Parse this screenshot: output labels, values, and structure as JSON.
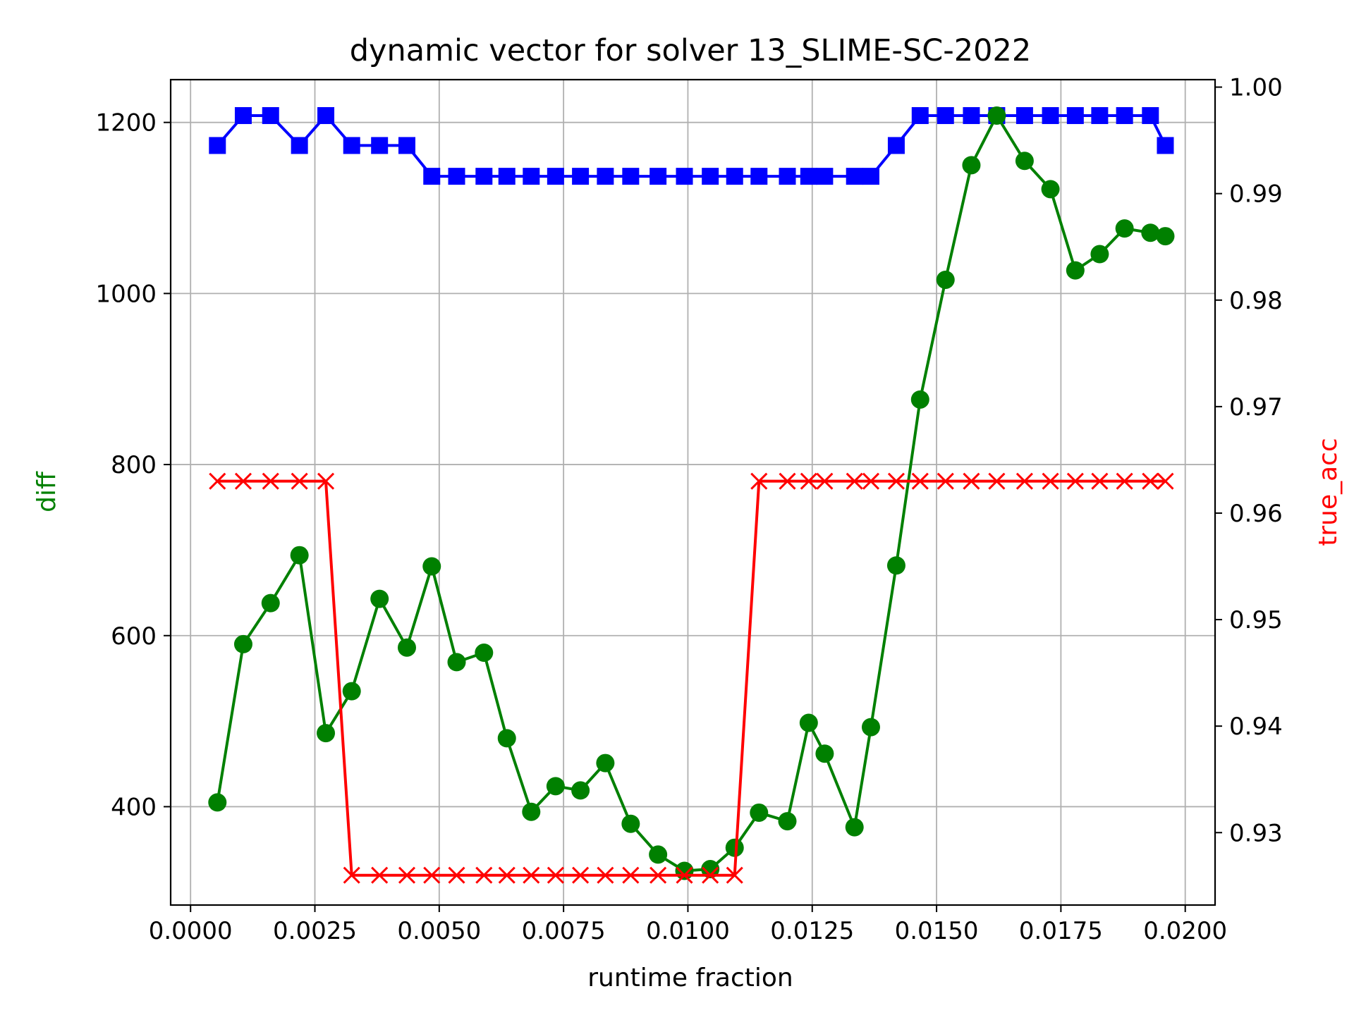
{
  "chart_data": {
    "type": "line",
    "title": "dynamic vector for solver 13_SLIME-SC-2022",
    "xlabel": "runtime fraction",
    "ylabel_left": "diff",
    "ylabel_right": "true_acc",
    "xlim": [
      -0.0004,
      0.0206
    ],
    "ylim_left": [
      285,
      1250
    ],
    "ylim_right": [
      0.9232,
      1.0007
    ],
    "x_ticks": [
      0.0,
      0.0025,
      0.005,
      0.0075,
      0.01,
      0.0125,
      0.015,
      0.0175,
      0.02
    ],
    "x_tick_labels": [
      "0.0000",
      "0.0025",
      "0.0050",
      "0.0075",
      "0.0100",
      "0.0125",
      "0.0150",
      "0.0175",
      "0.0200"
    ],
    "y_left_ticks": [
      400,
      600,
      800,
      1000,
      1200
    ],
    "y_left_tick_labels": [
      "400",
      "600",
      "800",
      "1000",
      "1200"
    ],
    "y_right_ticks": [
      0.93,
      0.94,
      0.95,
      0.96,
      0.97,
      0.98,
      0.99,
      1.0
    ],
    "y_right_tick_labels": [
      "0.93",
      "0.94",
      "0.95",
      "0.96",
      "0.97",
      "0.98",
      "0.99",
      "1.00"
    ],
    "grid": true,
    "colors": {
      "diff": "#008000",
      "blue_series": "#0000ff",
      "true_acc": "#ff0000",
      "ylabel_left": "#008000",
      "ylabel_right": "#ff0000",
      "grid": "#b0b0b0"
    },
    "x": [
      0.00054,
      0.00106,
      0.00161,
      0.00219,
      0.00272,
      0.00324,
      0.0038,
      0.00435,
      0.00485,
      0.00535,
      0.0059,
      0.00636,
      0.00685,
      0.00734,
      0.00784,
      0.00834,
      0.00885,
      0.0094,
      0.00993,
      0.01045,
      0.01094,
      0.01143,
      0.012,
      0.01243,
      0.01275,
      0.01335,
      0.01368,
      0.01419,
      0.01467,
      0.01518,
      0.0157,
      0.01621,
      0.01677,
      0.01729,
      0.01779,
      0.01828,
      0.01878,
      0.0193,
      0.0196
    ],
    "series": [
      {
        "axis": "left",
        "marker": "circle",
        "color": "#008000",
        "values": [
          405,
          590,
          638,
          694,
          486,
          535,
          643,
          586,
          681,
          569,
          580,
          480,
          394,
          424,
          419,
          451,
          380,
          344,
          325,
          327,
          352,
          393,
          383,
          498,
          462,
          376,
          493,
          682,
          876,
          1016,
          1150,
          1208,
          1155,
          1122,
          1027,
          1046,
          1076,
          1071,
          1067
        ]
      },
      {
        "axis": "left",
        "marker": "square",
        "color": "#0000ff",
        "values": [
          1173,
          1208,
          1208,
          1173,
          1208,
          1173,
          1173,
          1173,
          1137,
          1137,
          1137,
          1137,
          1137,
          1137,
          1137,
          1137,
          1137,
          1137,
          1137,
          1137,
          1137,
          1137,
          1137,
          1137,
          1137,
          1137,
          1137,
          1173,
          1208,
          1208,
          1208,
          1208,
          1208,
          1208,
          1208,
          1208,
          1208,
          1208,
          1173
        ]
      },
      {
        "axis": "right",
        "marker": "x",
        "color": "#ff0000",
        "values": [
          0.963,
          0.963,
          0.963,
          0.963,
          0.963,
          0.926,
          0.926,
          0.926,
          0.926,
          0.926,
          0.926,
          0.926,
          0.926,
          0.926,
          0.926,
          0.926,
          0.926,
          0.926,
          0.926,
          0.926,
          0.926,
          0.963,
          0.963,
          0.963,
          0.963,
          0.963,
          0.963,
          0.963,
          0.963,
          0.963,
          0.963,
          0.963,
          0.963,
          0.963,
          0.963,
          0.963,
          0.963,
          0.963,
          0.963
        ]
      }
    ]
  }
}
